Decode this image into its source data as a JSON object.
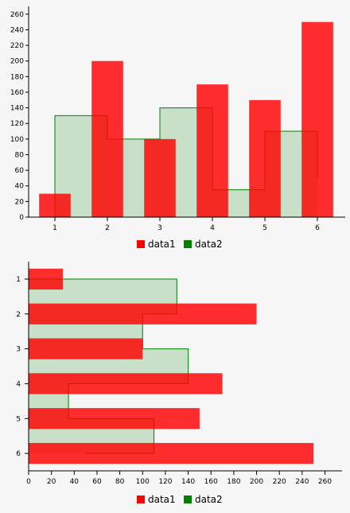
{
  "chart_data": [
    {
      "type": "bar",
      "orientation": "vertical",
      "categories": [
        "1",
        "2",
        "3",
        "4",
        "5",
        "6"
      ],
      "series": [
        {
          "name": "data1",
          "type": "bar",
          "values": [
            30,
            200,
            100,
            170,
            150,
            250
          ],
          "color": "#ff0000"
        },
        {
          "name": "data2",
          "type": "step-area",
          "values": [
            130,
            100,
            140,
            35,
            110,
            50
          ],
          "color": "#008000",
          "fill": "#c8e0c8"
        }
      ],
      "ylim": [
        0,
        270
      ],
      "yticks": [
        "0",
        "20",
        "40",
        "60",
        "80",
        "100",
        "120",
        "140",
        "160",
        "180",
        "200",
        "220",
        "240",
        "260"
      ],
      "legend_position": "bottom",
      "grid": false
    },
    {
      "type": "bar",
      "orientation": "horizontal",
      "categories": [
        "1",
        "2",
        "3",
        "4",
        "5",
        "6"
      ],
      "series": [
        {
          "name": "data1",
          "type": "bar",
          "values": [
            30,
            200,
            100,
            170,
            150,
            250
          ],
          "color": "#ff0000"
        },
        {
          "name": "data2",
          "type": "step-area",
          "values": [
            130,
            100,
            140,
            35,
            110,
            50
          ],
          "color": "#008000",
          "fill": "#c8e0c8"
        }
      ],
      "xlim": [
        0,
        275
      ],
      "xticks": [
        "0",
        "20",
        "40",
        "60",
        "80",
        "100",
        "120",
        "140",
        "160",
        "180",
        "200",
        "220",
        "240",
        "260"
      ],
      "legend_position": "bottom",
      "grid": false
    }
  ]
}
